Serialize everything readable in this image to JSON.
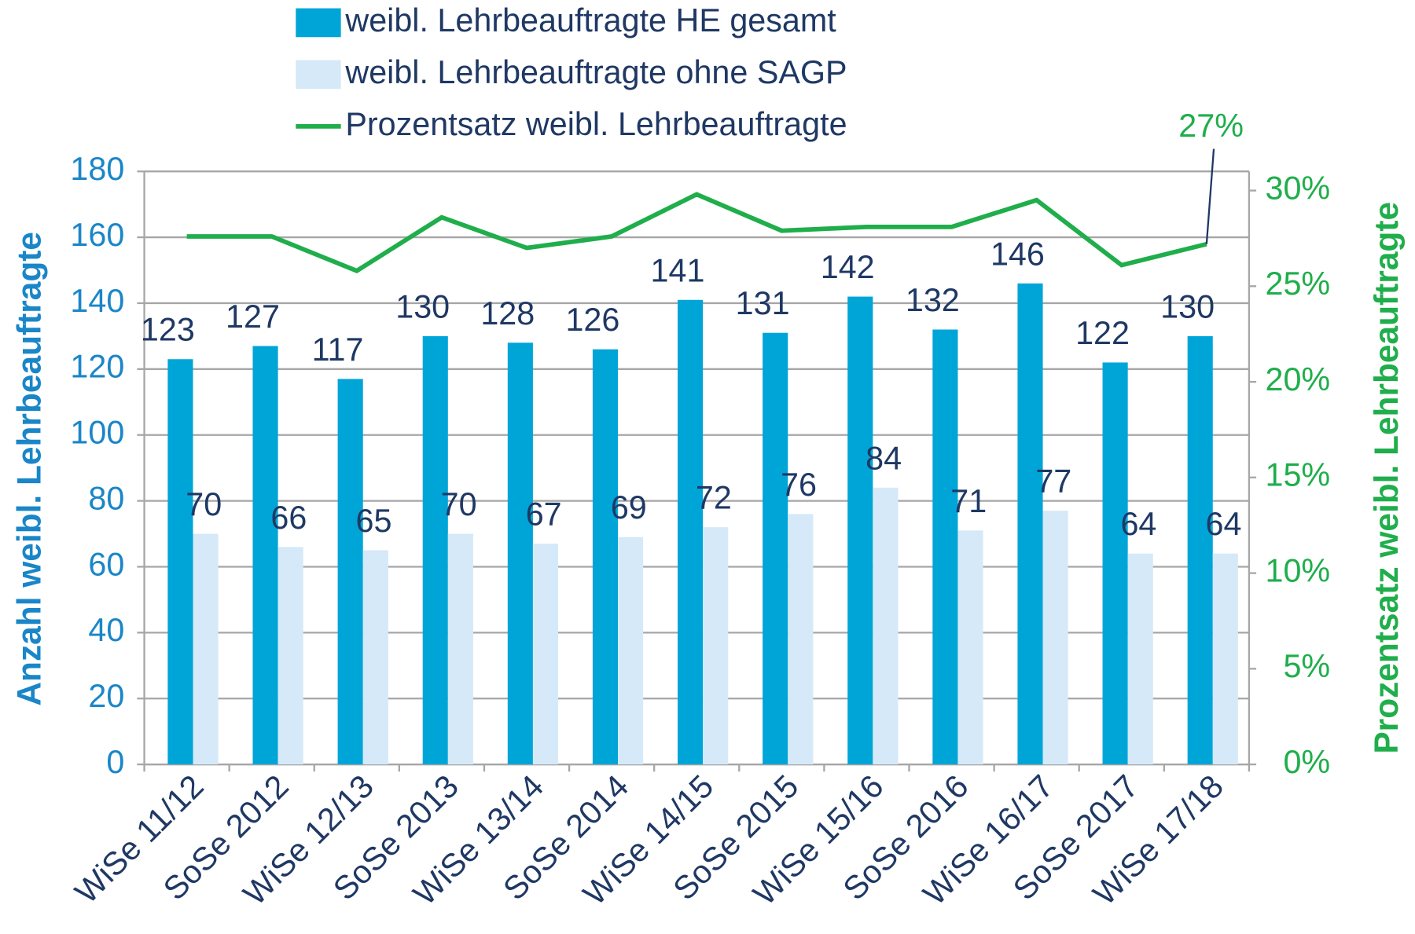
{
  "chart_data": {
    "type": "bar",
    "categories": [
      "WiSe 11/12",
      "SoSe 2012",
      "WiSe 12/13",
      "SoSe 2013",
      "WiSe 13/14",
      "SoSe 2014",
      "WiSe 14/15",
      "SoSe 2015",
      "WiSe 15/16",
      "SoSe 2016",
      "WiSe 16/17",
      "SoSe 2017",
      "WiSe 17/18"
    ],
    "series": [
      {
        "name": "weibl. Lehrbeauftragte HE gesamt",
        "type": "bar",
        "color": "#00a5d8",
        "values": [
          123,
          127,
          117,
          130,
          128,
          126,
          141,
          131,
          142,
          132,
          146,
          122,
          130
        ]
      },
      {
        "name": "weibl. Lehrbeauftragte ohne SAGP",
        "type": "bar",
        "color": "#d5e9f8",
        "values": [
          70,
          66,
          65,
          70,
          67,
          69,
          72,
          76,
          84,
          71,
          77,
          64,
          64
        ]
      },
      {
        "name": "Prozentsatz weibl. Lehrbeauftragte",
        "type": "line",
        "axis": "y2",
        "color": "#1fae4b",
        "values": [
          27.6,
          27.6,
          25.8,
          28.6,
          27.0,
          27.6,
          29.8,
          27.9,
          28.1,
          28.1,
          29.5,
          26.1,
          27.2
        ],
        "value_labels": [
          null,
          null,
          null,
          null,
          null,
          null,
          null,
          null,
          null,
          null,
          null,
          null,
          "27%"
        ]
      }
    ],
    "y_label": "Anzahl weibl. Lehrbeauftragte",
    "y2_label": "Prozentsatz weibl. Lehrbeauftragte",
    "ylim": [
      0,
      180
    ],
    "yticks": [
      0,
      20,
      40,
      60,
      80,
      100,
      120,
      140,
      160,
      180
    ],
    "y2lim": [
      0,
      31
    ],
    "y2ticks": [
      {
        "value": 0,
        "label": "0%"
      },
      {
        "value": 5,
        "label": "5%"
      },
      {
        "value": 10,
        "label": "10%"
      },
      {
        "value": 15,
        "label": "15%"
      },
      {
        "value": 20,
        "label": "20%"
      },
      {
        "value": 25,
        "label": "25%"
      },
      {
        "value": 30,
        "label": "30%"
      }
    ],
    "grid": true
  }
}
